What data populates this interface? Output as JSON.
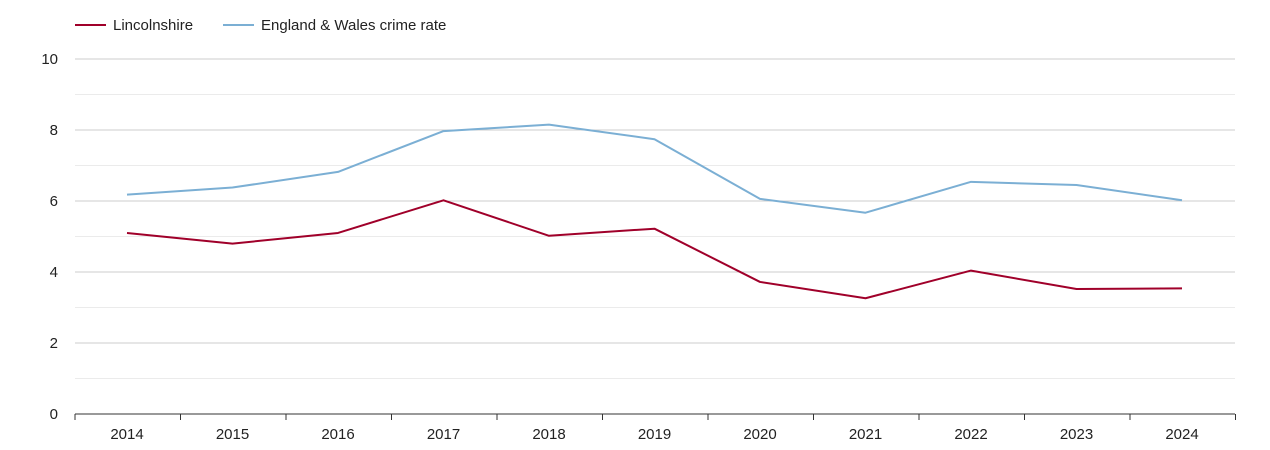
{
  "chart_data": {
    "type": "line",
    "title": "",
    "xlabel": "",
    "ylabel": "",
    "categories": [
      "2014",
      "2015",
      "2016",
      "2017",
      "2018",
      "2019",
      "2020",
      "2021",
      "2022",
      "2023",
      "2024"
    ],
    "ylim": [
      0,
      10
    ],
    "yticks": [
      "0",
      "2",
      "4",
      "6",
      "8",
      "10"
    ],
    "grid": true,
    "legend_position": "top-left",
    "series": [
      {
        "name": "Lincolnshire",
        "color": "#a0002a",
        "values": [
          5.1,
          4.8,
          5.1,
          6.02,
          5.02,
          5.22,
          3.72,
          3.26,
          4.04,
          3.52,
          3.54
        ]
      },
      {
        "name": "England & Wales crime rate",
        "color": "#7bafd4",
        "values": [
          6.18,
          6.38,
          6.82,
          7.97,
          8.15,
          7.74,
          6.06,
          5.67,
          6.54,
          6.45,
          6.02
        ]
      }
    ]
  }
}
